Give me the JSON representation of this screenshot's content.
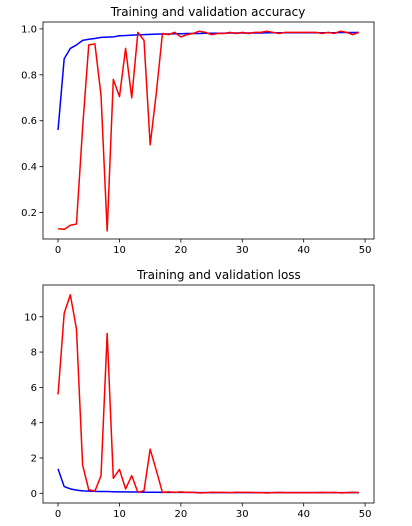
{
  "chart_data": [
    {
      "type": "line",
      "title": "Training and validation accuracy",
      "xlabel": "",
      "ylabel": "",
      "xlim": [
        -2.45,
        51.45
      ],
      "ylim": [
        0.085,
        1.03
      ],
      "xticks": [
        0,
        10,
        20,
        30,
        40,
        50
      ],
      "xtick_labels": [
        "0",
        "10",
        "20",
        "30",
        "40",
        "50"
      ],
      "yticks": [
        0.2,
        0.4,
        0.6,
        0.8,
        1.0
      ],
      "ytick_labels": [
        "0.2",
        "0.4",
        "0.6",
        "0.8",
        "1.0"
      ],
      "grid": false,
      "x": [
        0,
        1,
        2,
        3,
        4,
        5,
        6,
        7,
        8,
        9,
        10,
        11,
        12,
        13,
        14,
        15,
        16,
        17,
        18,
        19,
        20,
        21,
        22,
        23,
        24,
        25,
        26,
        27,
        28,
        29,
        30,
        31,
        32,
        33,
        34,
        35,
        36,
        37,
        38,
        39,
        40,
        41,
        42,
        43,
        44,
        45,
        46,
        47,
        48,
        49
      ],
      "series": [
        {
          "color": "#0000ff",
          "values": [
            0.56,
            0.87,
            0.915,
            0.93,
            0.95,
            0.955,
            0.958,
            0.963,
            0.964,
            0.965,
            0.97,
            0.971,
            0.973,
            0.974,
            0.975,
            0.976,
            0.977,
            0.978,
            0.978,
            0.979,
            0.979,
            0.98,
            0.98,
            0.98,
            0.981,
            0.981,
            0.981,
            0.981,
            0.982,
            0.982,
            0.982,
            0.982,
            0.982,
            0.982,
            0.983,
            0.983,
            0.983,
            0.983,
            0.983,
            0.983,
            0.983,
            0.983,
            0.983,
            0.983,
            0.983,
            0.983,
            0.984,
            0.984,
            0.984,
            0.984
          ]
        },
        {
          "color": "#ff0000",
          "values": [
            0.13,
            0.127,
            0.145,
            0.15,
            0.57,
            0.93,
            0.935,
            0.71,
            0.12,
            0.78,
            0.705,
            0.915,
            0.7,
            0.985,
            0.95,
            0.495,
            0.72,
            0.98,
            0.975,
            0.985,
            0.965,
            0.975,
            0.98,
            0.99,
            0.985,
            0.975,
            0.98,
            0.98,
            0.985,
            0.98,
            0.985,
            0.98,
            0.985,
            0.985,
            0.99,
            0.985,
            0.98,
            0.985,
            0.985,
            0.985,
            0.985,
            0.985,
            0.985,
            0.98,
            0.985,
            0.98,
            0.99,
            0.985,
            0.975,
            0.985
          ]
        }
      ]
    },
    {
      "type": "line",
      "title": "Training and validation loss",
      "xlabel": "",
      "ylabel": "",
      "xlim": [
        -2.45,
        51.45
      ],
      "ylim": [
        -0.55,
        11.8
      ],
      "xticks": [
        0,
        10,
        20,
        30,
        40,
        50
      ],
      "xtick_labels": [
        "0",
        "10",
        "20",
        "30",
        "40",
        "50"
      ],
      "yticks": [
        0,
        2,
        4,
        6,
        8,
        10
      ],
      "ytick_labels": [
        "0",
        "2",
        "4",
        "6",
        "8",
        "10"
      ],
      "grid": false,
      "x": [
        0,
        1,
        2,
        3,
        4,
        5,
        6,
        7,
        8,
        9,
        10,
        11,
        12,
        13,
        14,
        15,
        16,
        17,
        18,
        19,
        20,
        21,
        22,
        23,
        24,
        25,
        26,
        27,
        28,
        29,
        30,
        31,
        32,
        33,
        34,
        35,
        36,
        37,
        38,
        39,
        40,
        41,
        42,
        43,
        44,
        45,
        46,
        47,
        48,
        49
      ],
      "series": [
        {
          "color": "#0000ff",
          "values": [
            1.38,
            0.38,
            0.25,
            0.18,
            0.14,
            0.12,
            0.11,
            0.1,
            0.1,
            0.09,
            0.08,
            0.08,
            0.07,
            0.07,
            0.06,
            0.06,
            0.06,
            0.05,
            0.05,
            0.05,
            0.05,
            0.05,
            0.05,
            0.04,
            0.04,
            0.04,
            0.04,
            0.04,
            0.04,
            0.04,
            0.04,
            0.04,
            0.04,
            0.04,
            0.04,
            0.04,
            0.04,
            0.04,
            0.04,
            0.04,
            0.04,
            0.04,
            0.04,
            0.04,
            0.04,
            0.04,
            0.04,
            0.04,
            0.04,
            0.04
          ]
        },
        {
          "color": "#ff0000",
          "values": [
            5.6,
            10.2,
            11.25,
            9.3,
            1.6,
            0.2,
            0.12,
            1.0,
            9.05,
            0.85,
            1.35,
            0.25,
            1.0,
            0.05,
            0.15,
            2.5,
            1.3,
            0.05,
            0.08,
            0.05,
            0.08,
            0.05,
            0.05,
            0.02,
            0.03,
            0.06,
            0.05,
            0.05,
            0.03,
            0.06,
            0.05,
            0.05,
            0.04,
            0.04,
            0.02,
            0.04,
            0.05,
            0.04,
            0.04,
            0.04,
            0.04,
            0.04,
            0.04,
            0.05,
            0.04,
            0.05,
            0.02,
            0.04,
            0.06,
            0.04
          ]
        }
      ]
    }
  ]
}
